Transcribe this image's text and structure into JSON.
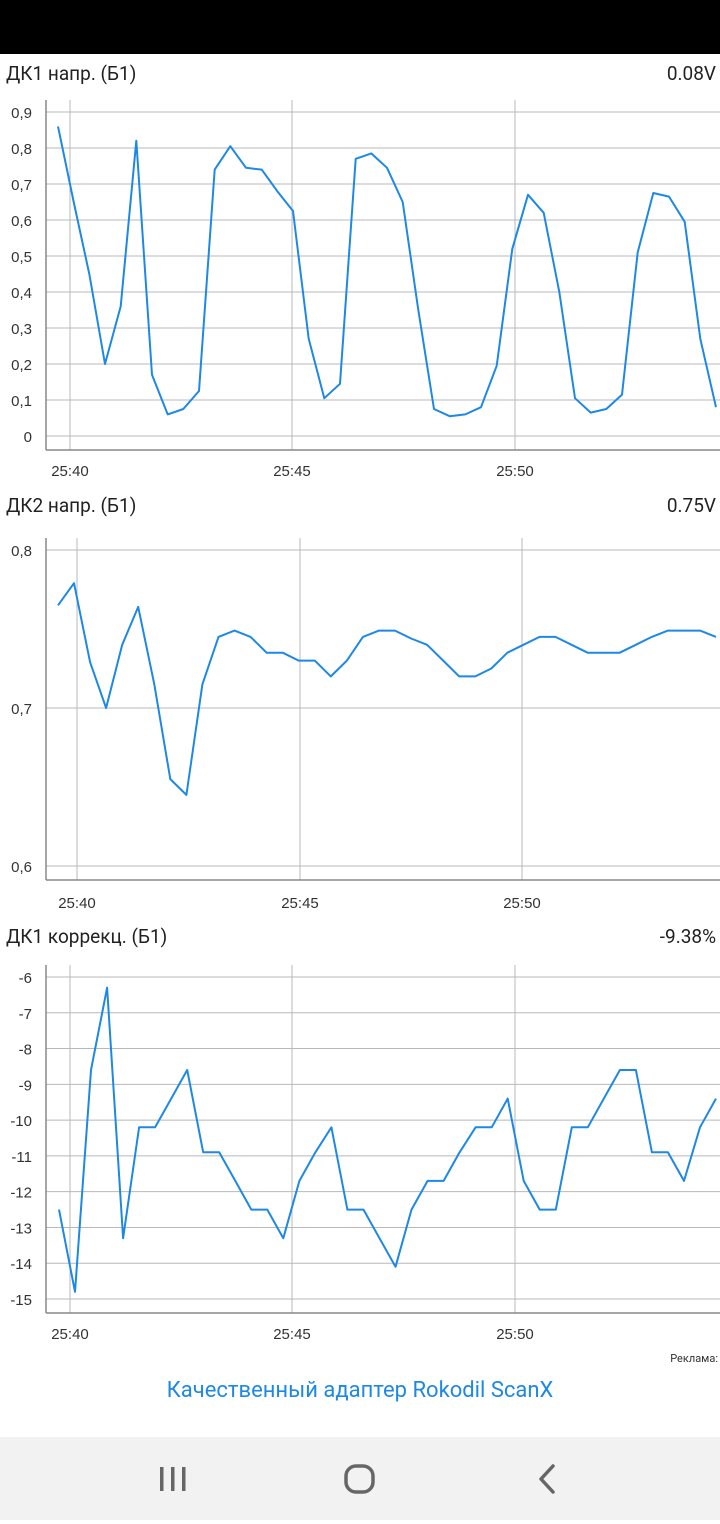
{
  "charts": [
    {
      "title": "ДК1 напр. (Б1)",
      "value": "0.08V",
      "chart_data": {
        "type": "line",
        "ylim": [
          0,
          0.9
        ],
        "yticks": [
          "0",
          "0,1",
          "0,2",
          "0,3",
          "0,4",
          "0,5",
          "0,6",
          "0,7",
          "0,8",
          "0,9"
        ],
        "xticks": [
          "25:40",
          "25:45",
          "25:50"
        ],
        "series": [
          {
            "values": [
              0.86,
              0.65,
              0.45,
              0.2,
              0.36,
              0.82,
              0.17,
              0.06,
              0.075,
              0.125,
              0.74,
              0.805,
              0.745,
              0.74,
              0.68,
              0.625,
              0.27,
              0.105,
              0.145,
              0.77,
              0.785,
              0.745,
              0.65,
              0.35,
              0.075,
              0.055,
              0.06,
              0.08,
              0.195,
              0.52,
              0.67,
              0.62,
              0.4,
              0.105,
              0.065,
              0.075,
              0.115,
              0.51,
              0.675,
              0.665,
              0.595,
              0.27,
              0.08
            ]
          }
        ]
      }
    },
    {
      "title": "ДК2 напр. (Б1)",
      "value": "0.75V",
      "chart_data": {
        "type": "line",
        "ylim": [
          0.6,
          0.8
        ],
        "yticks": [
          "0,6",
          "0,7",
          "0,8"
        ],
        "xticks": [
          "25:40",
          "25:45",
          "25:50"
        ],
        "series": [
          {
            "values": [
              0.765,
              0.779,
              0.729,
              0.7,
              0.74,
              0.764,
              0.715,
              0.655,
              0.645,
              0.715,
              0.745,
              0.749,
              0.745,
              0.735,
              0.735,
              0.73,
              0.73,
              0.72,
              0.73,
              0.745,
              0.749,
              0.749,
              0.744,
              0.74,
              0.73,
              0.72,
              0.72,
              0.725,
              0.735,
              0.74,
              0.745,
              0.745,
              0.74,
              0.735,
              0.735,
              0.735,
              0.74,
              0.745,
              0.749,
              0.749,
              0.749,
              0.745
            ]
          }
        ]
      }
    },
    {
      "title": "ДК1 коррекц. (Б1)",
      "value": "-9.38%",
      "chart_data": {
        "type": "line",
        "ylim": [
          -15.3,
          -5.8
        ],
        "yticks": [
          "-15",
          "-14",
          "-13",
          "-12",
          "-11",
          "-10",
          "-9",
          "-8",
          "-7",
          "-6"
        ],
        "xticks": [
          "25:40",
          "25:45",
          "25:50"
        ],
        "series": [
          {
            "values": [
              -12.5,
              -14.8,
              -8.6,
              -6.3,
              -13.3,
              -10.2,
              -10.2,
              -9.4,
              -8.6,
              -10.9,
              -10.9,
              -11.7,
              -12.5,
              -12.5,
              -13.3,
              -11.7,
              -10.9,
              -10.2,
              -12.5,
              -12.5,
              -13.3,
              -14.1,
              -12.5,
              -11.7,
              -11.7,
              -10.9,
              -10.2,
              -10.2,
              -9.4,
              -11.7,
              -12.5,
              -12.5,
              -10.2,
              -10.2,
              -9.4,
              -8.6,
              -8.6,
              -10.9,
              -10.9,
              -11.7,
              -10.2,
              -9.4
            ]
          }
        ]
      }
    }
  ],
  "ad": {
    "label": "Реклама:",
    "text": "Качественный адаптер Rokodil ScanX"
  },
  "colors": {
    "line": "#1e88e5",
    "grid": "#b8b8b8",
    "axis": "#888888",
    "ad": "#1e88e5"
  },
  "navbar": {
    "icons": [
      "recent-apps-icon",
      "home-icon",
      "back-icon"
    ]
  }
}
